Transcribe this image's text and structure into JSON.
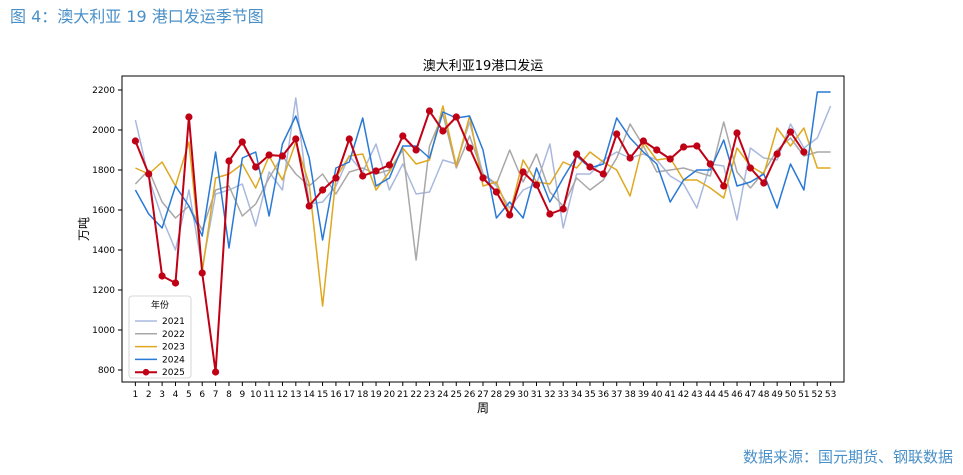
{
  "figure_title": "图 4：澳大利亚 19 港口发运季节图",
  "source": "数据来源：国元期货、钢联数据",
  "chart_data": {
    "type": "line",
    "title": "澳大利亚19港口发运",
    "xlabel": "周",
    "ylabel": "万吨",
    "x": [
      1,
      2,
      3,
      4,
      5,
      6,
      7,
      8,
      9,
      10,
      11,
      12,
      13,
      14,
      15,
      16,
      17,
      18,
      19,
      20,
      21,
      22,
      23,
      24,
      25,
      26,
      27,
      28,
      29,
      30,
      31,
      32,
      33,
      34,
      35,
      36,
      37,
      38,
      39,
      40,
      41,
      42,
      43,
      44,
      45,
      46,
      47,
      48,
      49,
      50,
      51,
      52,
      53
    ],
    "yticks": [
      800,
      1000,
      1200,
      1400,
      1600,
      1800,
      2000,
      2200
    ],
    "xlim": [
      0,
      54
    ],
    "ylim": [
      740,
      2270
    ],
    "legend": {
      "title": "年份",
      "position": "lower-left"
    },
    "grid": false,
    "series": [
      {
        "name": "2021",
        "color": "#a9b8de",
        "width": 1.5,
        "marker": false,
        "values": [
          2050,
          1760,
          1560,
          1400,
          1700,
          1310,
          1680,
          1700,
          1730,
          1520,
          1790,
          1700,
          2160,
          1630,
          1640,
          1720,
          1870,
          1790,
          1930,
          1700,
          1830,
          1680,
          1690,
          1850,
          1830,
          2040,
          1780,
          1720,
          1610,
          1700,
          1730,
          1930,
          1510,
          1780,
          1780,
          1850,
          1890,
          1860,
          1880,
          1850,
          1770,
          1730,
          1610,
          1830,
          1820,
          1550,
          1910,
          1860,
          1850,
          2030,
          1910,
          1960,
          2120
        ]
      },
      {
        "name": "2022",
        "color": "#a8a8a8",
        "width": 1.5,
        "marker": false,
        "values": [
          1730,
          1800,
          1640,
          1560,
          1620,
          1500,
          1700,
          1720,
          1570,
          1630,
          1760,
          1870,
          1780,
          1720,
          1780,
          1680,
          1790,
          1810,
          1780,
          1800,
          1900,
          1350,
          1920,
          2080,
          1810,
          1970,
          1780,
          1730,
          1900,
          1740,
          1880,
          1690,
          1620,
          1760,
          1700,
          1750,
          1860,
          2030,
          1920,
          1790,
          1800,
          1810,
          1790,
          1770,
          2040,
          1790,
          1710,
          1790,
          1900,
          1960,
          1870,
          1890,
          1890
        ]
      },
      {
        "name": "2023",
        "color": "#dfa820",
        "width": 1.5,
        "marker": false,
        "values": [
          1810,
          1780,
          1840,
          1720,
          1940,
          1290,
          1760,
          1780,
          1830,
          1710,
          1870,
          1750,
          1940,
          1730,
          1120,
          1760,
          1870,
          1880,
          1700,
          1790,
          1910,
          1830,
          1850,
          2120,
          1820,
          2070,
          1720,
          1740,
          1580,
          1850,
          1740,
          1730,
          1840,
          1810,
          1890,
          1840,
          1800,
          1670,
          1940,
          1850,
          1860,
          1750,
          1750,
          1710,
          1660,
          1910,
          1820,
          1780,
          2010,
          1920,
          2010,
          1810,
          1810
        ]
      },
      {
        "name": "2024",
        "color": "#2979d6",
        "width": 1.5,
        "marker": false,
        "values": [
          1700,
          1580,
          1510,
          1720,
          1620,
          1470,
          1890,
          1410,
          1860,
          1890,
          1570,
          1930,
          2070,
          1860,
          1450,
          1810,
          1840,
          2060,
          1720,
          1760,
          1920,
          1920,
          1860,
          2090,
          2060,
          2070,
          1900,
          1560,
          1640,
          1560,
          1810,
          1640,
          1760,
          1870,
          1810,
          1830,
          2060,
          1960,
          1890,
          1830,
          1640,
          1750,
          1800,
          1800,
          1950,
          1720,
          1740,
          1780,
          1610,
          1830,
          1700,
          2190,
          2190
        ]
      },
      {
        "name": "2025",
        "color": "#c00015",
        "width": 2,
        "marker": true,
        "values": [
          1945,
          1780,
          1270,
          1235,
          2065,
          1285,
          790,
          1845,
          1940,
          1815,
          1875,
          1870,
          1955,
          1620,
          1700,
          1760,
          1955,
          1770,
          1795,
          1825,
          1970,
          1900,
          2095,
          1995,
          2065,
          1910,
          1760,
          1690,
          1575,
          1790,
          1725,
          1580,
          1605,
          1880,
          1815,
          1780,
          1980,
          1860,
          1945,
          1900,
          1855,
          1915,
          1920,
          1830,
          1720,
          1985,
          1810,
          1735,
          1880,
          1990,
          1890,
          null,
          null
        ]
      }
    ]
  }
}
